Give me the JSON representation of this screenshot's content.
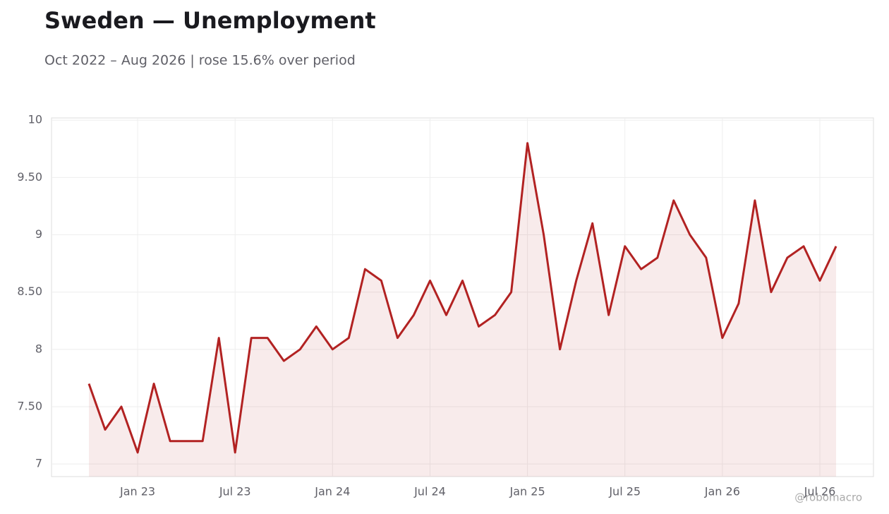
{
  "chart_data": {
    "type": "line",
    "title": "Sweden — Unemployment",
    "subtitle": "Oct 2022 – Aug 2026 | rose 15.6% over period",
    "x": [
      "2022-10",
      "2022-11",
      "2022-12",
      "2023-01",
      "2023-02",
      "2023-03",
      "2023-04",
      "2023-05",
      "2023-06",
      "2023-07",
      "2023-08",
      "2023-09",
      "2023-10",
      "2023-11",
      "2023-12",
      "2024-01",
      "2024-02",
      "2024-03",
      "2024-04",
      "2024-05",
      "2024-06",
      "2024-07",
      "2024-08",
      "2024-09",
      "2024-10",
      "2024-11",
      "2024-12",
      "2025-01",
      "2025-02",
      "2025-03",
      "2025-04",
      "2025-05",
      "2025-06",
      "2025-07",
      "2025-08",
      "2025-09",
      "2025-10",
      "2025-11",
      "2025-12",
      "2026-01",
      "2026-02",
      "2026-03",
      "2026-04",
      "2026-05",
      "2026-06",
      "2026-07",
      "2026-08"
    ],
    "series": [
      {
        "color": "#b22222",
        "values": [
          7.7,
          7.3,
          7.5,
          7.1,
          7.7,
          7.2,
          7.2,
          7.2,
          8.1,
          7.1,
          8.1,
          8.1,
          7.9,
          8.0,
          8.2,
          8.0,
          8.1,
          8.7,
          8.6,
          8.1,
          8.3,
          8.6,
          8.3,
          8.6,
          8.2,
          8.3,
          8.5,
          9.8,
          9.0,
          8.0,
          8.6,
          9.1,
          8.3,
          8.9,
          8.7,
          8.8,
          9.3,
          9.0,
          8.8,
          8.1,
          8.4,
          9.3,
          8.5,
          8.8,
          8.9,
          8.6,
          8.9
        ]
      }
    ],
    "xticks": [
      {
        "value": "2023-01",
        "label": "Jan 23"
      },
      {
        "value": "2023-07",
        "label": "Jul 23"
      },
      {
        "value": "2024-01",
        "label": "Jan 24"
      },
      {
        "value": "2024-07",
        "label": "Jul 24"
      },
      {
        "value": "2025-01",
        "label": "Jan 25"
      },
      {
        "value": "2025-07",
        "label": "Jul 25"
      },
      {
        "value": "2026-01",
        "label": "Jan 26"
      },
      {
        "value": "2026-07",
        "label": "Jul 26"
      }
    ],
    "ylim": [
      6.89,
      10.02
    ],
    "yticks": [
      7,
      {
        "value": 7.5,
        "label": "7.50"
      },
      8,
      {
        "value": 8.5,
        "label": "8.50"
      },
      9,
      {
        "value": 9.5,
        "label": "9.50"
      },
      10
    ],
    "grid": true,
    "fill": true,
    "watermark": "@robomacro"
  }
}
